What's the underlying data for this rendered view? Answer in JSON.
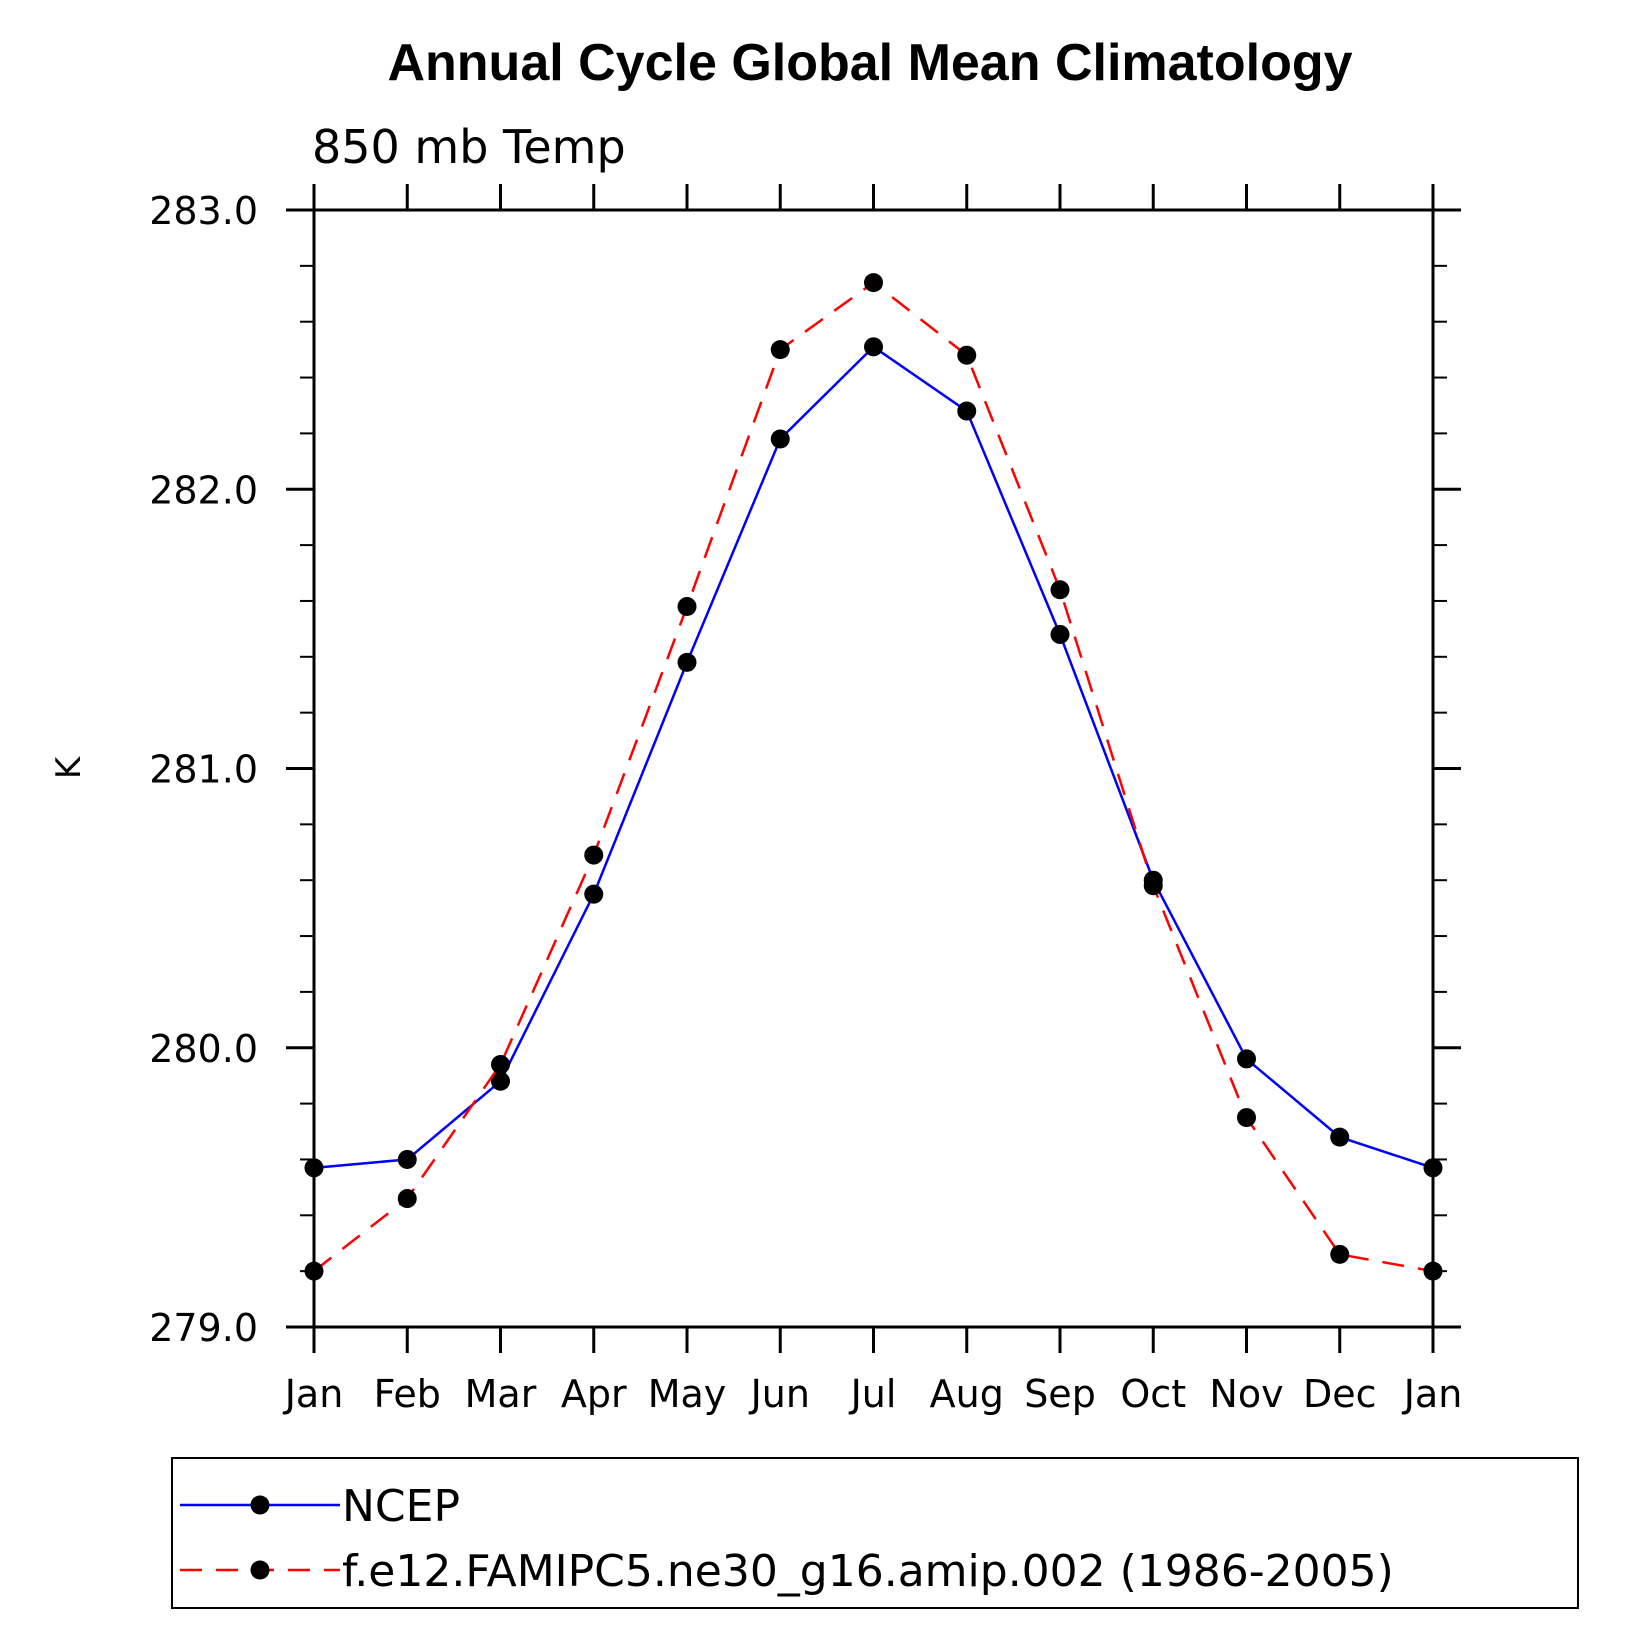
{
  "chart_data": {
    "type": "line",
    "title": "Annual Cycle Global Mean Climatology",
    "subtitle": "850 mb Temp",
    "xlabel": "",
    "ylabel": "K",
    "categories": [
      "Jan",
      "Feb",
      "Mar",
      "Apr",
      "May",
      "Jun",
      "Jul",
      "Aug",
      "Sep",
      "Oct",
      "Nov",
      "Dec",
      "Jan"
    ],
    "ylim": [
      279.0,
      283.0
    ],
    "yticks": [
      "279.0",
      "280.0",
      "281.0",
      "282.0",
      "283.0"
    ],
    "grid": false,
    "legend_position": "bottom",
    "series": [
      {
        "name": "NCEP",
        "color": "#0000ff",
        "dash": "solid",
        "marker": "filled-circle",
        "values": [
          279.57,
          279.6,
          279.88,
          280.55,
          281.38,
          282.18,
          282.51,
          282.28,
          281.48,
          280.6,
          279.96,
          279.68,
          279.57
        ]
      },
      {
        "name": "f.e12.FAMIPC5.ne30_g16.amip.002 (1986-2005)",
        "color": "#ff0000",
        "dash": "dashed",
        "marker": "filled-circle",
        "values": [
          279.2,
          279.46,
          279.94,
          280.69,
          281.58,
          282.5,
          282.74,
          282.48,
          281.64,
          280.58,
          279.75,
          279.26,
          279.2
        ]
      }
    ]
  }
}
